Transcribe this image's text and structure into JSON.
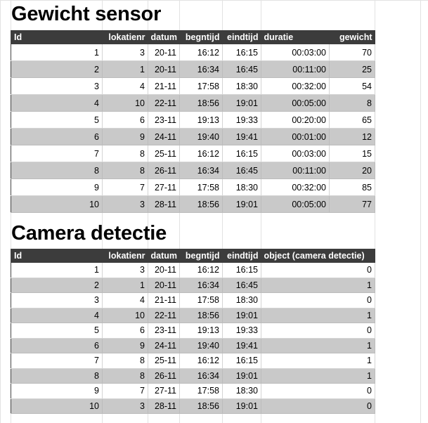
{
  "sections": [
    {
      "title": "Gewicht sensor",
      "headers": [
        "Id",
        "lokatienr",
        "datum",
        "begntijd",
        "eindtijd",
        "duratie",
        "gewicht"
      ],
      "rows": [
        [
          "1",
          "3",
          "20-11",
          "16:12",
          "16:15",
          "00:03:00",
          "70"
        ],
        [
          "2",
          "1",
          "20-11",
          "16:34",
          "16:45",
          "00:11:00",
          "25"
        ],
        [
          "3",
          "4",
          "21-11",
          "17:58",
          "18:30",
          "00:32:00",
          "54"
        ],
        [
          "4",
          "10",
          "22-11",
          "18:56",
          "19:01",
          "00:05:00",
          "8"
        ],
        [
          "5",
          "6",
          "23-11",
          "19:13",
          "19:33",
          "00:20:00",
          "65"
        ],
        [
          "6",
          "9",
          "24-11",
          "19:40",
          "19:41",
          "00:01:00",
          "12"
        ],
        [
          "7",
          "8",
          "25-11",
          "16:12",
          "16:15",
          "00:03:00",
          "15"
        ],
        [
          "8",
          "8",
          "26-11",
          "16:34",
          "16:45",
          "00:11:00",
          "20"
        ],
        [
          "9",
          "7",
          "27-11",
          "17:58",
          "18:30",
          "00:32:00",
          "85"
        ],
        [
          "10",
          "3",
          "28-11",
          "18:56",
          "19:01",
          "00:05:00",
          "77"
        ]
      ]
    },
    {
      "title": "Camera detectie",
      "headers": [
        "Id",
        "lokatienr",
        "datum",
        "begntijd",
        "eindtijd",
        "object (camera detectie)"
      ],
      "rows": [
        [
          "1",
          "3",
          "20-11",
          "16:12",
          "16:15",
          "0"
        ],
        [
          "2",
          "1",
          "20-11",
          "16:34",
          "16:45",
          "1"
        ],
        [
          "3",
          "4",
          "21-11",
          "17:58",
          "18:30",
          "0"
        ],
        [
          "4",
          "10",
          "22-11",
          "18:56",
          "19:01",
          "1"
        ],
        [
          "5",
          "6",
          "23-11",
          "19:13",
          "19:33",
          "0"
        ],
        [
          "6",
          "9",
          "24-11",
          "19:40",
          "19:41",
          "1"
        ],
        [
          "7",
          "8",
          "25-11",
          "16:12",
          "16:15",
          "1"
        ],
        [
          "8",
          "8",
          "26-11",
          "16:34",
          "19:01",
          "1"
        ],
        [
          "9",
          "7",
          "27-11",
          "17:58",
          "18:30",
          "0"
        ],
        [
          "10",
          "3",
          "28-11",
          "18:56",
          "19:01",
          "0"
        ]
      ]
    }
  ],
  "colors": {
    "header_bg": "#3c3c3c",
    "header_text": "#ffffff",
    "band_row": "#c9c9c9",
    "grid_line": "#e2e2e2"
  }
}
